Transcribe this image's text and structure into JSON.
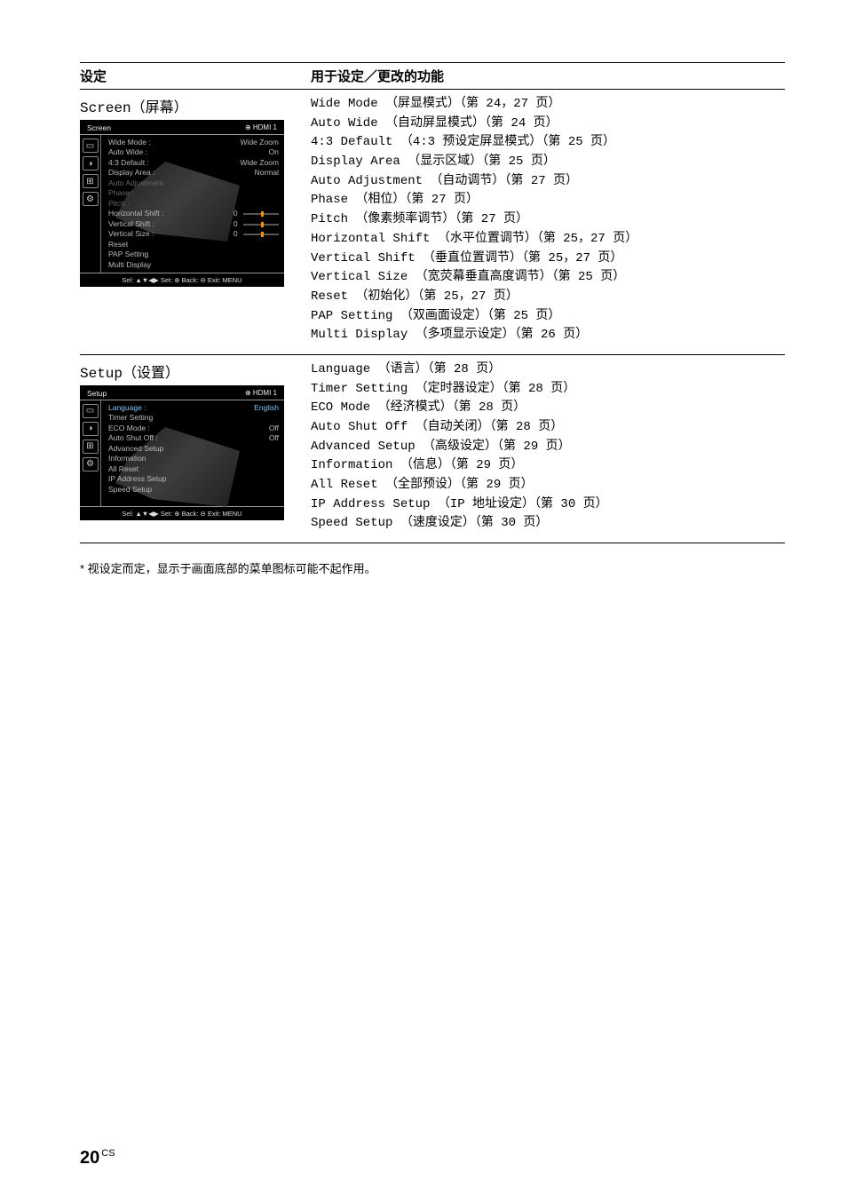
{
  "header": {
    "left": "设定",
    "right": "用于设定／更改的功能"
  },
  "sections": [
    {
      "title_en": "Screen",
      "title_cn": "（屏幕）",
      "osd": {
        "title": "Screen",
        "source_icon": "⊕",
        "source": "HDMI 1",
        "icons": [
          "▭",
          "◑",
          "⊞",
          "⚙"
        ],
        "rows": [
          {
            "label": "Wide Mode :",
            "value": "Wide Zoom",
            "hl": false
          },
          {
            "label": "Auto Wide :",
            "value": "On",
            "hl": false
          },
          {
            "label": "4:3 Default :",
            "value": "Wide Zoom",
            "hl": false
          },
          {
            "label": "Display Area :",
            "value": "Normal",
            "hl": false
          },
          {
            "label": "Auto Adjustment",
            "value": "",
            "dim": true
          },
          {
            "label": "Phase :",
            "value": "",
            "dim": true
          },
          {
            "label": "Pitch :",
            "value": "",
            "dim": true
          },
          {
            "label": "Horizontal Shift :",
            "value": "0",
            "slider": true
          },
          {
            "label": "Vertical Shift :",
            "value": "0",
            "slider": true
          },
          {
            "label": "Vertical Size :",
            "value": "0",
            "slider": true
          },
          {
            "label": "Reset",
            "value": ""
          },
          {
            "label": "PAP Setting",
            "value": ""
          },
          {
            "label": "Multi Display",
            "value": ""
          }
        ],
        "footer": "Sel: ▲▼◀▶   Set: ⊕   Back: ⊖   Exit: MENU"
      },
      "functions": [
        "Wide Mode （屏显模式）（第 24，27 页）",
        "Auto Wide （自动屏显模式）（第 24 页）",
        "4:3 Default （4:3 预设定屏显模式）（第 25 页）",
        "Display Area （显示区域）（第 25 页）",
        "Auto Adjustment （自动调节）（第 27 页）",
        "Phase （相位）（第 27 页）",
        "Pitch （像素频率调节）（第 27 页）",
        "Horizontal Shift （水平位置调节）（第 25，27 页）",
        "Vertical Shift （垂直位置调节）（第 25，27 页）",
        "Vertical Size （宽荧幕垂直高度调节）（第 25 页）",
        "Reset （初始化）（第 25，27 页）",
        "PAP Setting （双画面设定）（第 25 页）",
        "Multi Display （多项显示设定）（第 26 页）"
      ]
    },
    {
      "title_en": "Setup",
      "title_cn": "（设置）",
      "osd": {
        "title": "Setup",
        "source_icon": "⊕",
        "source": "HDMI 1",
        "icons": [
          "▭",
          "◑",
          "⊞",
          "⚙"
        ],
        "rows": [
          {
            "label": "Language :",
            "value": "English",
            "hl": true
          },
          {
            "label": "Timer Setting",
            "value": ""
          },
          {
            "label": "ECO Mode :",
            "value": "Off"
          },
          {
            "label": "Auto Shut Off :",
            "value": "Off"
          },
          {
            "label": "Advanced Setup",
            "value": ""
          },
          {
            "label": "Information",
            "value": ""
          },
          {
            "label": "All Reset",
            "value": ""
          },
          {
            "label": "IP Address Setup",
            "value": ""
          },
          {
            "label": "Speed Setup",
            "value": ""
          }
        ],
        "footer": "Sel: ▲▼◀▶   Set: ⊕   Back: ⊖   Exit: MENU"
      },
      "functions": [
        "Language （语言）（第 28 页）",
        "Timer Setting （定时器设定）（第 28 页）",
        "ECO Mode （经济模式）（第 28 页）",
        "Auto Shut Off （自动关闭）（第 28 页）",
        "Advanced Setup （高级设定）（第 29 页）",
        "Information （信息）（第 29 页）",
        "All Reset （全部预设）（第 29 页）",
        "IP Address Setup （IP 地址设定）（第 30 页）",
        "Speed Setup （速度设定）（第 30 页）"
      ]
    }
  ],
  "footnote": "* 视设定而定，显示于画面底部的菜单图标可能不起作用。",
  "page": {
    "num": "20",
    "sup": "CS"
  }
}
